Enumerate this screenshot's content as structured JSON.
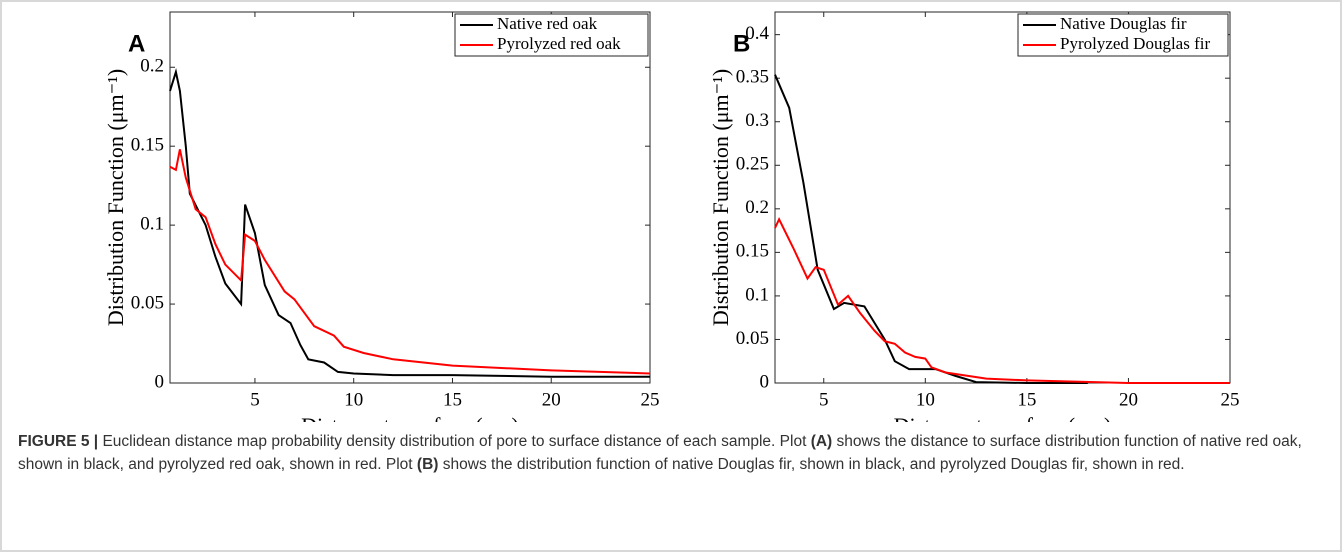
{
  "chart_data": [
    {
      "type": "line",
      "panel": "A",
      "x_label": "Distance to surface (μm)",
      "y_label": "Distribution Function (μm⁻¹)",
      "xlim": [
        0.7,
        25
      ],
      "ylim": [
        0,
        0.235
      ],
      "xticks": [
        5,
        10,
        15,
        20,
        25
      ],
      "yticks": [
        0,
        0.05,
        0.1,
        0.15,
        0.2
      ],
      "legend": "upper right",
      "series": [
        {
          "name": "Native red oak",
          "color": "#000000",
          "x": [
            0.7,
            1.0,
            1.2,
            1.5,
            1.7,
            2.5,
            3,
            3.5,
            4.3,
            4.5,
            5,
            5.5,
            6.2,
            6.8,
            7.3,
            7.7,
            8.5,
            9.2,
            10,
            12,
            15,
            20,
            25
          ],
          "values": [
            0.185,
            0.197,
            0.185,
            0.15,
            0.12,
            0.1,
            0.08,
            0.063,
            0.05,
            0.113,
            0.095,
            0.062,
            0.043,
            0.038,
            0.024,
            0.015,
            0.013,
            0.007,
            0.006,
            0.005,
            0.005,
            0.004,
            0.004
          ]
        },
        {
          "name": "Pyrolyzed red oak",
          "color": "#ff0000",
          "x": [
            0.7,
            1,
            1.2,
            1.5,
            2,
            2.5,
            3,
            3.5,
            4.3,
            4.5,
            5,
            5.5,
            6.5,
            7,
            8,
            9,
            9.5,
            10.5,
            12,
            15,
            20,
            25
          ],
          "values": [
            0.137,
            0.135,
            0.148,
            0.13,
            0.11,
            0.105,
            0.088,
            0.075,
            0.065,
            0.094,
            0.09,
            0.078,
            0.058,
            0.053,
            0.036,
            0.03,
            0.023,
            0.019,
            0.015,
            0.011,
            0.008,
            0.006
          ]
        }
      ]
    },
    {
      "type": "line",
      "panel": "B",
      "x_label": "Distance to surface (μm)",
      "y_label": "Distribution Function (μm⁻¹)",
      "xlim": [
        2.6,
        25
      ],
      "ylim": [
        0,
        0.426
      ],
      "xticks": [
        5,
        10,
        15,
        20,
        25
      ],
      "yticks": [
        0,
        0.05,
        0.1,
        0.15,
        0.2,
        0.25,
        0.3,
        0.35,
        0.4
      ],
      "legend": "upper right",
      "series": [
        {
          "name": "Native Douglas fir",
          "color": "#000000",
          "x": [
            2.6,
            3.3,
            4,
            4.7,
            5.5,
            6,
            7,
            8,
            8.5,
            9.2,
            10.5,
            11.5,
            12.5,
            15,
            18
          ],
          "values": [
            0.354,
            0.316,
            0.23,
            0.13,
            0.085,
            0.092,
            0.088,
            0.05,
            0.025,
            0.016,
            0.016,
            0.008,
            0.001,
            0,
            0
          ]
        },
        {
          "name": "Pyrolyzed Douglas fir",
          "color": "#ff0000",
          "x": [
            2.6,
            2.8,
            3.5,
            4.2,
            4.6,
            5,
            5.7,
            6.2,
            6.8,
            7.5,
            8,
            8.5,
            9,
            9.5,
            10,
            10.3,
            11,
            13,
            15,
            20,
            25
          ],
          "values": [
            0.178,
            0.188,
            0.155,
            0.12,
            0.133,
            0.13,
            0.09,
            0.1,
            0.08,
            0.06,
            0.048,
            0.045,
            0.035,
            0.03,
            0.028,
            0.018,
            0.012,
            0.005,
            0.003,
            0,
            0
          ]
        }
      ]
    }
  ],
  "caption": {
    "label": "FIGURE 5 |",
    "text": [
      "Euclidean distance map probability density distribution of pore to surface distance of each sample. Plot",
      "(A)",
      "shows the distance to surface distribution function of native red oak, shown in black, and pyrolyzed red oak, shown in red. Plot",
      "(B)",
      "shows the distribution function of native Douglas fir, shown in black, and pyrolyzed Douglas fir, shown in red."
    ]
  }
}
